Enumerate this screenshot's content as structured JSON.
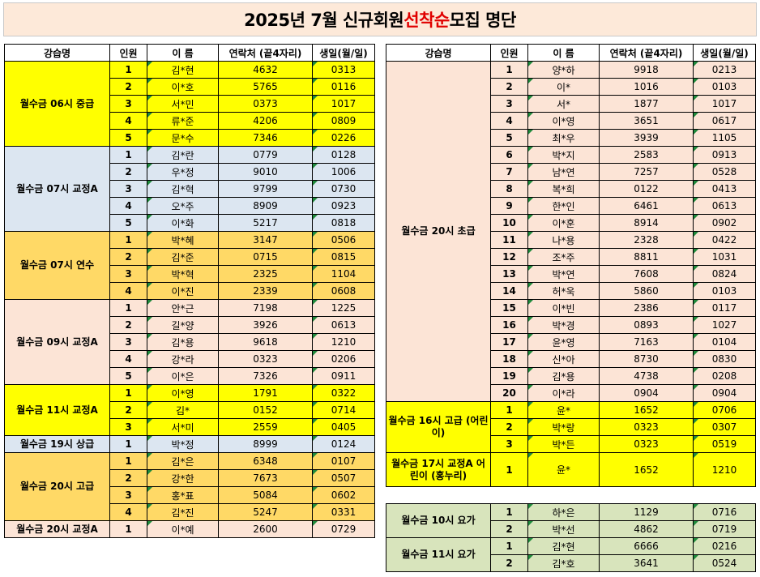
{
  "title": {
    "prefix": "2025년 7월 신규회원 ",
    "highlight": "선착순",
    "suffix": " 모집 명단"
  },
  "headers": {
    "class": "강습명",
    "no": "인원",
    "name": "이 름",
    "phone": "연락처 (끝4자리)",
    "birth": "생일(월/일)"
  },
  "colors": {
    "yellow": "#ffff00",
    "blue": "#dce6f1",
    "orange": "#ffd966",
    "pink": "#fce4d6",
    "green": "#d8e4bc",
    "title_bg": "#fde9d9",
    "highlight": "#e00000",
    "tick": "#1f8a3c"
  },
  "left_groups": [
    {
      "name": "월수금 06시 중급",
      "color": "yellow",
      "rows": [
        {
          "no": "1",
          "name": "김*현",
          "phone": "4632",
          "birth": "0313"
        },
        {
          "no": "2",
          "name": "이*호",
          "phone": "5765",
          "birth": "0116"
        },
        {
          "no": "3",
          "name": "서*민",
          "phone": "0373",
          "birth": "1017"
        },
        {
          "no": "4",
          "name": "류*준",
          "phone": "4206",
          "birth": "0809"
        },
        {
          "no": "5",
          "name": "문*수",
          "phone": "7346",
          "birth": "0226"
        }
      ]
    },
    {
      "name": "월수금 07시 교정A",
      "color": "blue",
      "rows": [
        {
          "no": "1",
          "name": "김*란",
          "phone": "0779",
          "birth": "0128"
        },
        {
          "no": "2",
          "name": "우*정",
          "phone": "9010",
          "birth": "1006"
        },
        {
          "no": "3",
          "name": "김*혁",
          "phone": "9799",
          "birth": "0730"
        },
        {
          "no": "4",
          "name": "오*주",
          "phone": "8909",
          "birth": "0923"
        },
        {
          "no": "5",
          "name": "이*화",
          "phone": "5217",
          "birth": "0818"
        }
      ]
    },
    {
      "name": "월수금 07시 연수",
      "color": "orange",
      "rows": [
        {
          "no": "1",
          "name": "박*혜",
          "phone": "3147",
          "birth": "0506"
        },
        {
          "no": "2",
          "name": "김*준",
          "phone": "0715",
          "birth": "0815"
        },
        {
          "no": "3",
          "name": "박*혁",
          "phone": "2325",
          "birth": "1104"
        },
        {
          "no": "4",
          "name": "이*진",
          "phone": "2339",
          "birth": "0608"
        }
      ]
    },
    {
      "name": "월수금 09시 교정A",
      "color": "pink",
      "rows": [
        {
          "no": "1",
          "name": "안*근",
          "phone": "7198",
          "birth": "1225"
        },
        {
          "no": "2",
          "name": "길*양",
          "phone": "3926",
          "birth": "0613"
        },
        {
          "no": "3",
          "name": "김*용",
          "phone": "9618",
          "birth": "1210"
        },
        {
          "no": "4",
          "name": "강*라",
          "phone": "0323",
          "birth": "0206"
        },
        {
          "no": "5",
          "name": "이*은",
          "phone": "7326",
          "birth": "0911"
        }
      ]
    },
    {
      "name": "월수금 11시 교정A",
      "color": "yellow",
      "rows": [
        {
          "no": "1",
          "name": "이*영",
          "phone": "1791",
          "birth": "0322"
        },
        {
          "no": "2",
          "name": "김*",
          "phone": "0152",
          "birth": "0714"
        },
        {
          "no": "3",
          "name": "서*미",
          "phone": "2559",
          "birth": "0405"
        }
      ]
    },
    {
      "name": "월수금 19시 상급",
      "color": "blue",
      "rows": [
        {
          "no": "1",
          "name": "박*정",
          "phone": "8999",
          "birth": "0124"
        }
      ]
    },
    {
      "name": "월수금 20시 고급",
      "color": "orange",
      "rows": [
        {
          "no": "1",
          "name": "김*은",
          "phone": "6348",
          "birth": "0107"
        },
        {
          "no": "2",
          "name": "강*한",
          "phone": "7673",
          "birth": "0507"
        },
        {
          "no": "3",
          "name": "홍*표",
          "phone": "5084",
          "birth": "0602"
        },
        {
          "no": "4",
          "name": "김*진",
          "phone": "5247",
          "birth": "0331"
        }
      ]
    },
    {
      "name": "월수금 20시 교정A",
      "color": "pink",
      "rows": [
        {
          "no": "1",
          "name": "이*예",
          "phone": "2600",
          "birth": "0729"
        }
      ]
    }
  ],
  "right_groups": [
    {
      "name": "월수금 20시 초급",
      "color": "pink",
      "rows": [
        {
          "no": "1",
          "name": "양*하",
          "phone": "9918",
          "birth": "0213"
        },
        {
          "no": "2",
          "name": "이*",
          "phone": "1016",
          "birth": "0103"
        },
        {
          "no": "3",
          "name": "서*",
          "phone": "1877",
          "birth": "1017"
        },
        {
          "no": "4",
          "name": "이*영",
          "phone": "3651",
          "birth": "0617"
        },
        {
          "no": "5",
          "name": "최*우",
          "phone": "3939",
          "birth": "1105"
        },
        {
          "no": "6",
          "name": "박*지",
          "phone": "2583",
          "birth": "0913"
        },
        {
          "no": "7",
          "name": "남*연",
          "phone": "7257",
          "birth": "0528"
        },
        {
          "no": "8",
          "name": "복*희",
          "phone": "0122",
          "birth": "0413"
        },
        {
          "no": "9",
          "name": "한*인",
          "phone": "6461",
          "birth": "0613"
        },
        {
          "no": "10",
          "name": "이*훈",
          "phone": "8914",
          "birth": "0902"
        },
        {
          "no": "11",
          "name": "나*용",
          "phone": "2328",
          "birth": "0422"
        },
        {
          "no": "12",
          "name": "조*주",
          "phone": "8811",
          "birth": "1031"
        },
        {
          "no": "13",
          "name": "박*연",
          "phone": "7608",
          "birth": "0824"
        },
        {
          "no": "14",
          "name": "허*욱",
          "phone": "5860",
          "birth": "0103"
        },
        {
          "no": "15",
          "name": "이*빈",
          "phone": "2386",
          "birth": "0117"
        },
        {
          "no": "16",
          "name": "박*경",
          "phone": "0893",
          "birth": "1027"
        },
        {
          "no": "17",
          "name": "윤*영",
          "phone": "7163",
          "birth": "0104"
        },
        {
          "no": "18",
          "name": "신*아",
          "phone": "8730",
          "birth": "0830"
        },
        {
          "no": "19",
          "name": "김*용",
          "phone": "4738",
          "birth": "0208"
        },
        {
          "no": "20",
          "name": "이*라",
          "phone": "0904",
          "birth": "0904"
        }
      ]
    },
    {
      "name": "월수금 16시 고급 (어린이)",
      "color": "yellow",
      "rows": [
        {
          "no": "1",
          "name": "윤*",
          "phone": "1652",
          "birth": "0706"
        },
        {
          "no": "2",
          "name": "박*랑",
          "phone": "0323",
          "birth": "0307"
        },
        {
          "no": "3",
          "name": "박*든",
          "phone": "0323",
          "birth": "0519"
        }
      ]
    },
    {
      "name": "월수금 17시 교정A 어린이 (홍누리)",
      "color": "yellow",
      "tall": true,
      "rows": [
        {
          "no": "1",
          "name": "윤*",
          "phone": "1652",
          "birth": "1210"
        }
      ]
    }
  ],
  "yoga_groups": [
    {
      "name": "월수금 10시 요가",
      "color": "green",
      "rows": [
        {
          "no": "1",
          "name": "하*은",
          "phone": "1129",
          "birth": "0716"
        },
        {
          "no": "2",
          "name": "박*선",
          "phone": "4862",
          "birth": "0719"
        }
      ]
    },
    {
      "name": "월수금 11시 요가",
      "color": "green",
      "rows": [
        {
          "no": "1",
          "name": "김*현",
          "phone": "6666",
          "birth": "0216"
        },
        {
          "no": "2",
          "name": "김*호",
          "phone": "3641",
          "birth": "0524"
        }
      ]
    }
  ]
}
